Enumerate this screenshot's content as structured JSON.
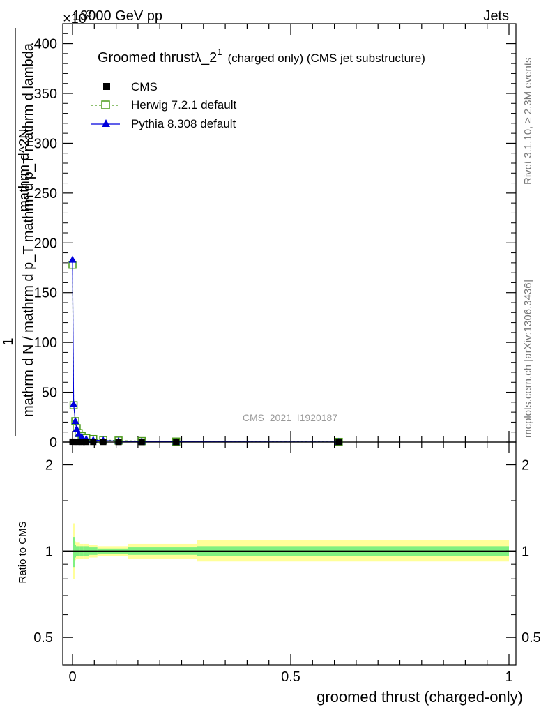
{
  "header": {
    "energy_label": "13000 GeV pp",
    "process_label": "Jets",
    "multiplier_label": "×10^3"
  },
  "side_labels": {
    "rivet": "Rivet 3.1.10, ≥ 2.3M events",
    "mcplots": "mcplots.cern.ch [arXiv:1306.3436]"
  },
  "analysis_id": "CMS_2021_I1920187",
  "colors": {
    "herwig": "#4a9a1a",
    "pythia": "#0000dd",
    "cms": "#000000",
    "band_inner": "#80f080",
    "band_outer": "#ffff99"
  },
  "chart_data": [
    {
      "type": "line",
      "title": "Groomed thrust λ_2^1 (charged only) (CMS jet substructure)",
      "title_main": "Groomed thrust",
      "title_lambda": "λ_2",
      "title_sup": "1",
      "title_rest": "(charged only) (CMS jet substructure)",
      "xlabel": "groomed thrust (charged-only)",
      "ylabel_numerator": "1",
      "ylabel_denominator": "mathrm d N / mathrm d p_T mathrm d p_T mathrm d lambda",
      "ylabel_frac_top": "mathrm d^2N",
      "xlim": [
        -0.02,
        1.0
      ],
      "ylim": [
        0,
        420
      ],
      "y_multiplier": "×10^3",
      "xticks": [
        0,
        0.5,
        1
      ],
      "xtick_labels": [
        "0",
        "0.5",
        "1"
      ],
      "yticks": [
        0,
        50,
        100,
        150,
        200,
        250,
        300,
        350,
        400
      ],
      "ytick_labels": [
        "0",
        "50",
        "100",
        "150",
        "200",
        "250",
        "300",
        "350",
        "400"
      ],
      "legend": [
        "CMS",
        "Herwig 7.2.1 default",
        "Pythia 8.308 default"
      ],
      "legend_position": "top-left",
      "series": [
        {
          "name": "CMS",
          "marker": "square",
          "x": [
            0.0,
            0.0025,
            0.0065,
            0.0095,
            0.014,
            0.021,
            0.0315,
            0.0475,
            0.0705,
            0.1055,
            0.1585,
            0.2375,
            0.61
          ],
          "values": [
            0.4,
            0.3,
            0.3,
            0.3,
            0.3,
            0.2,
            0.2,
            0.2,
            0.2,
            0.15,
            0.1,
            0.1,
            0.2
          ]
        },
        {
          "name": "Herwig 7.2.1 default",
          "marker": "open-square",
          "x": [
            0.0,
            0.0025,
            0.0065,
            0.0095,
            0.014,
            0.021,
            0.0315,
            0.0475,
            0.0705,
            0.1055,
            0.1585,
            0.2375,
            0.61
          ],
          "values": [
            178,
            37,
            21,
            14,
            9,
            6,
            4,
            3,
            2,
            1.5,
            1,
            0.5,
            0.2
          ]
        },
        {
          "name": "Pythia 8.308 default",
          "marker": "triangle",
          "x": [
            0.0,
            0.0025,
            0.0065,
            0.0095,
            0.014,
            0.021,
            0.0315,
            0.0475,
            0.0705,
            0.1055,
            0.1585,
            0.2375,
            0.61
          ],
          "values": [
            183,
            38,
            21,
            13,
            8,
            5,
            3,
            2,
            1.5,
            1,
            0.5,
            0.3,
            0.1
          ]
        }
      ]
    },
    {
      "type": "area",
      "title": "",
      "xlabel": "groomed thrust (charged-only)",
      "ylabel": "Ratio to CMS",
      "xlim": [
        -0.02,
        1.0
      ],
      "ylim": [
        0.4,
        2.4
      ],
      "y_scale": "log",
      "yticks": [
        0.5,
        1,
        2
      ],
      "ytick_labels": [
        "0.5",
        "1",
        "2"
      ],
      "bins": [
        0.0,
        0.005,
        0.008,
        0.011,
        0.017,
        0.025,
        0.038,
        0.057,
        0.084,
        0.127,
        0.19,
        0.285,
        1.0
      ],
      "inner_band_low": [
        0.88,
        0.95,
        0.96,
        0.96,
        0.96,
        0.96,
        0.97,
        0.98,
        0.98,
        0.97,
        0.97,
        0.96,
        0.96
      ],
      "inner_band_high": [
        1.12,
        1.05,
        1.04,
        1.04,
        1.04,
        1.04,
        1.03,
        1.02,
        1.02,
        1.03,
        1.03,
        1.04,
        1.04
      ],
      "outer_band_low": [
        0.8,
        0.93,
        0.94,
        0.94,
        0.94,
        0.94,
        0.95,
        0.96,
        0.96,
        0.94,
        0.94,
        0.92,
        0.92
      ],
      "outer_band_high": [
        1.25,
        1.08,
        1.07,
        1.07,
        1.06,
        1.06,
        1.05,
        1.04,
        1.04,
        1.06,
        1.06,
        1.09,
        1.09
      ],
      "reference_line": 1
    }
  ]
}
